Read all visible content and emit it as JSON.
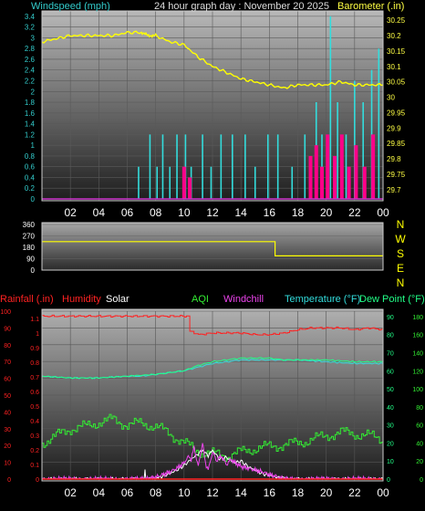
{
  "top_chart": {
    "title_left": "Windspeed (mph)",
    "title_center": "24 hour graph day : November 20 2025",
    "title_right": "Barometer (.in)",
    "x_ticks": [
      "02",
      "04",
      "06",
      "08",
      "10",
      "12",
      "14",
      "16",
      "18",
      "20",
      "22",
      "00"
    ],
    "y_left_ticks": [
      "0",
      "0.2",
      "0.4",
      "0.6",
      "0.8",
      "1",
      "1.2",
      "1.4",
      "1.6",
      "1.8",
      "2",
      "2.2",
      "2.4",
      "2.6",
      "2.8",
      "3",
      "3.2",
      "3.4"
    ],
    "y_right_ticks": [
      "29.7",
      "29.75",
      "29.8",
      "29.85",
      "29.9",
      "29.95",
      "30",
      "30.05",
      "30.1",
      "30.15",
      "30.2",
      "30.25"
    ],
    "colors": {
      "wind_gust": "#33dddd",
      "wind_avg": "#ff0088",
      "barometer": "#ffff00",
      "title_left": "#33cccc",
      "title_right": "#ffff44"
    }
  },
  "wind_dir_chart": {
    "y_ticks": [
      "0",
      "90",
      "180",
      "270",
      "360"
    ],
    "compass": [
      "N",
      "W",
      "S",
      "E",
      "N"
    ],
    "colors": {
      "line": "#ffff00",
      "compass": "#ffff00"
    }
  },
  "bottom_chart": {
    "legend": {
      "rainfall": "Rainfall (.in)",
      "humidity": "Humidity",
      "solar": "Solar",
      "aqi": "AQI",
      "windchill": "Windchill",
      "temperature": "Temperature (°F)",
      "dewpoint": "Dew Point (°F)"
    },
    "x_ticks": [
      "02",
      "04",
      "06",
      "08",
      "10",
      "12",
      "14",
      "16",
      "18",
      "20",
      "22",
      "00"
    ],
    "y_left_outer_ticks": [
      "0",
      "10",
      "20",
      "30",
      "40",
      "50",
      "60",
      "70",
      "80",
      "90",
      "100"
    ],
    "y_left_inner_ticks": [
      "0",
      "0.1",
      "0.2",
      "0.3",
      "0.4",
      "0.5",
      "0.6",
      "0.7",
      "0.8",
      "0.9",
      "1",
      "1.1"
    ],
    "y_right_inner_ticks": [
      "0",
      "10",
      "20",
      "30",
      "40",
      "50",
      "60",
      "70",
      "80",
      "90"
    ],
    "y_right_outer_ticks": [
      "0",
      "20",
      "40",
      "60",
      "80",
      "100",
      "120",
      "140",
      "160",
      "180"
    ],
    "colors": {
      "rainfall": "#ff2222",
      "humidity": "#ff2222",
      "solar": "#ffffff",
      "aqi": "#33ee33",
      "windchill": "#ee44ee",
      "temperature": "#33dddd",
      "dewpoint": "#22ff88"
    }
  },
  "chart_data": [
    {
      "type": "line",
      "title": "24 hour graph day : November 20 2025",
      "x_range_hours": [
        0,
        24
      ],
      "series": [
        {
          "name": "Barometer (.in)",
          "axis": "right",
          "ylim": [
            29.67,
            30.28
          ],
          "x": [
            0,
            1,
            2,
            3,
            4,
            5,
            6,
            7,
            7.5,
            8,
            9,
            10,
            11,
            12,
            13,
            14,
            15,
            16,
            17,
            18,
            19,
            20,
            21,
            22,
            23,
            24
          ],
          "values": [
            30.18,
            30.19,
            30.2,
            30.2,
            30.2,
            30.2,
            30.21,
            30.21,
            30.2,
            30.2,
            30.18,
            30.17,
            30.13,
            30.1,
            30.08,
            30.06,
            30.05,
            30.04,
            30.03,
            30.04,
            30.04,
            30.04,
            30.05,
            30.04,
            30.04,
            30.04
          ]
        },
        {
          "name": "Windspeed (mph)",
          "axis": "left",
          "ylim": [
            0,
            3.5
          ],
          "gust_x": [
            6.8,
            7.6,
            8.1,
            8.5,
            9.0,
            9.5,
            10.1,
            10.5,
            11.3,
            11.9,
            12.6,
            13.4,
            14.3,
            15.0,
            15.9,
            16.6,
            17.6,
            18.5,
            19.3,
            19.7,
            20.3,
            20.8,
            21.4,
            22.0,
            22.6,
            23.2,
            23.7
          ],
          "gust": [
            0.6,
            1.2,
            0.6,
            1.2,
            0.6,
            1.2,
            1.2,
            0.6,
            1.2,
            0.6,
            1.2,
            1.2,
            1.2,
            0.6,
            1.2,
            1.2,
            0.6,
            1.2,
            1.8,
            1.2,
            3.4,
            1.8,
            1.2,
            2.2,
            1.8,
            2.4,
            2.8
          ],
          "avg_x": [
            10.0,
            10.4,
            18.9,
            19.3,
            19.7,
            20.1,
            20.6,
            21.1,
            21.6,
            22.1,
            22.7,
            23.3
          ],
          "avg": [
            0.6,
            0.4,
            0.8,
            1.0,
            0.6,
            1.2,
            0.8,
            1.2,
            0.6,
            1.0,
            0.6,
            1.2
          ]
        }
      ]
    },
    {
      "type": "line",
      "title": "",
      "ylim": [
        0,
        360
      ],
      "series": [
        {
          "name": "Wind direction",
          "x": [
            0,
            16.4,
            16.4,
            24
          ],
          "values": [
            225,
            225,
            112,
            112
          ]
        }
      ]
    },
    {
      "type": "line",
      "title": "",
      "x_range_hours": [
        0,
        24
      ],
      "series": [
        {
          "name": "Humidity",
          "axis": "left_outer",
          "ylim": [
            0,
            100
          ],
          "color": "#ff2222",
          "x": [
            0,
            1,
            2,
            3,
            4,
            5,
            6,
            7,
            8,
            9,
            10.3,
            10.4,
            11,
            12,
            13,
            14,
            15,
            16,
            17,
            18,
            19,
            20,
            21,
            22,
            23,
            24
          ],
          "values": [
            97,
            97,
            97,
            97,
            97,
            97,
            97,
            97,
            97,
            97,
            97,
            88,
            86,
            87,
            87,
            87,
            86,
            86,
            87,
            89,
            90,
            90,
            90,
            89,
            90,
            89
          ]
        },
        {
          "name": "Temperature (°F)",
          "axis": "right_inner",
          "ylim": [
            0,
            93
          ],
          "color": "#33dddd",
          "x": [
            0,
            2,
            4,
            6,
            7,
            8,
            9,
            10,
            11,
            12,
            13,
            14,
            15,
            16,
            17,
            18,
            20,
            22,
            24
          ],
          "values": [
            57,
            56,
            56,
            57,
            57,
            58,
            59,
            60,
            62,
            64,
            65,
            66,
            66,
            66,
            66,
            66,
            65,
            64,
            64
          ]
        },
        {
          "name": "Dew Point (°F)",
          "axis": "right_inner",
          "ylim": [
            0,
            93
          ],
          "color": "#22ff88",
          "x": [
            0,
            2,
            4,
            6,
            8,
            9,
            10,
            11,
            12,
            13,
            14,
            15,
            16,
            17,
            18,
            20,
            22,
            24
          ],
          "values": [
            57,
            56,
            56,
            57,
            58,
            59,
            60,
            63,
            65,
            66,
            67,
            67,
            67,
            66,
            66,
            66,
            65,
            65
          ]
        },
        {
          "name": "AQI",
          "axis": "right_outer",
          "ylim": [
            0,
            186
          ],
          "color": "#33ee33",
          "x": [
            0,
            1,
            2,
            3,
            4,
            5,
            6,
            7,
            8,
            9,
            10,
            11,
            12,
            13,
            14,
            15,
            16,
            17,
            18,
            19,
            20,
            21,
            22,
            23,
            24
          ],
          "values": [
            40,
            48,
            56,
            58,
            63,
            66,
            60,
            62,
            58,
            50,
            40,
            30,
            28,
            26,
            30,
            34,
            36,
            38,
            40,
            44,
            48,
            52,
            50,
            48,
            44
          ]
        },
        {
          "name": "Solar",
          "axis": "right_outer",
          "ylim": [
            0,
            186
          ],
          "color": "#ffffff",
          "x": [
            0,
            7.2,
            7.25,
            7.3,
            7.8,
            8.5,
            9,
            9.5,
            10,
            10.5,
            11,
            11.3,
            11.7,
            12,
            12.5,
            13,
            13.5,
            14,
            14.5,
            15,
            15.5,
            16,
            16.5,
            17,
            17.5,
            24
          ],
          "values": [
            0,
            0,
            12,
            0,
            0,
            3,
            6,
            10,
            15,
            22,
            28,
            32,
            26,
            32,
            22,
            24,
            18,
            20,
            14,
            10,
            6,
            4,
            2,
            1,
            0,
            0
          ]
        },
        {
          "name": "Windchill",
          "axis": "right_outer",
          "ylim": [
            0,
            186
          ],
          "color": "#ee44ee",
          "x": [
            0,
            7.3,
            8,
            8.5,
            9,
            9.5,
            10,
            10.3,
            10.5,
            10.7,
            11,
            11.3,
            11.5,
            11.7,
            12,
            12.3,
            12.6,
            13,
            13.3,
            13.6,
            14,
            14.5,
            15,
            15.5,
            16,
            16.5,
            17,
            24
          ],
          "values": [
            0,
            0,
            2,
            5,
            8,
            12,
            18,
            25,
            22,
            35,
            14,
            40,
            18,
            10,
            30,
            20,
            26,
            16,
            22,
            18,
            14,
            12,
            10,
            8,
            5,
            3,
            0,
            0
          ]
        },
        {
          "name": "Rainfall (.in)",
          "axis": "left_inner",
          "ylim": [
            0,
            1.15
          ],
          "color": "#ff2222",
          "x": [
            0,
            24
          ],
          "values": [
            0,
            0
          ]
        }
      ]
    }
  ]
}
